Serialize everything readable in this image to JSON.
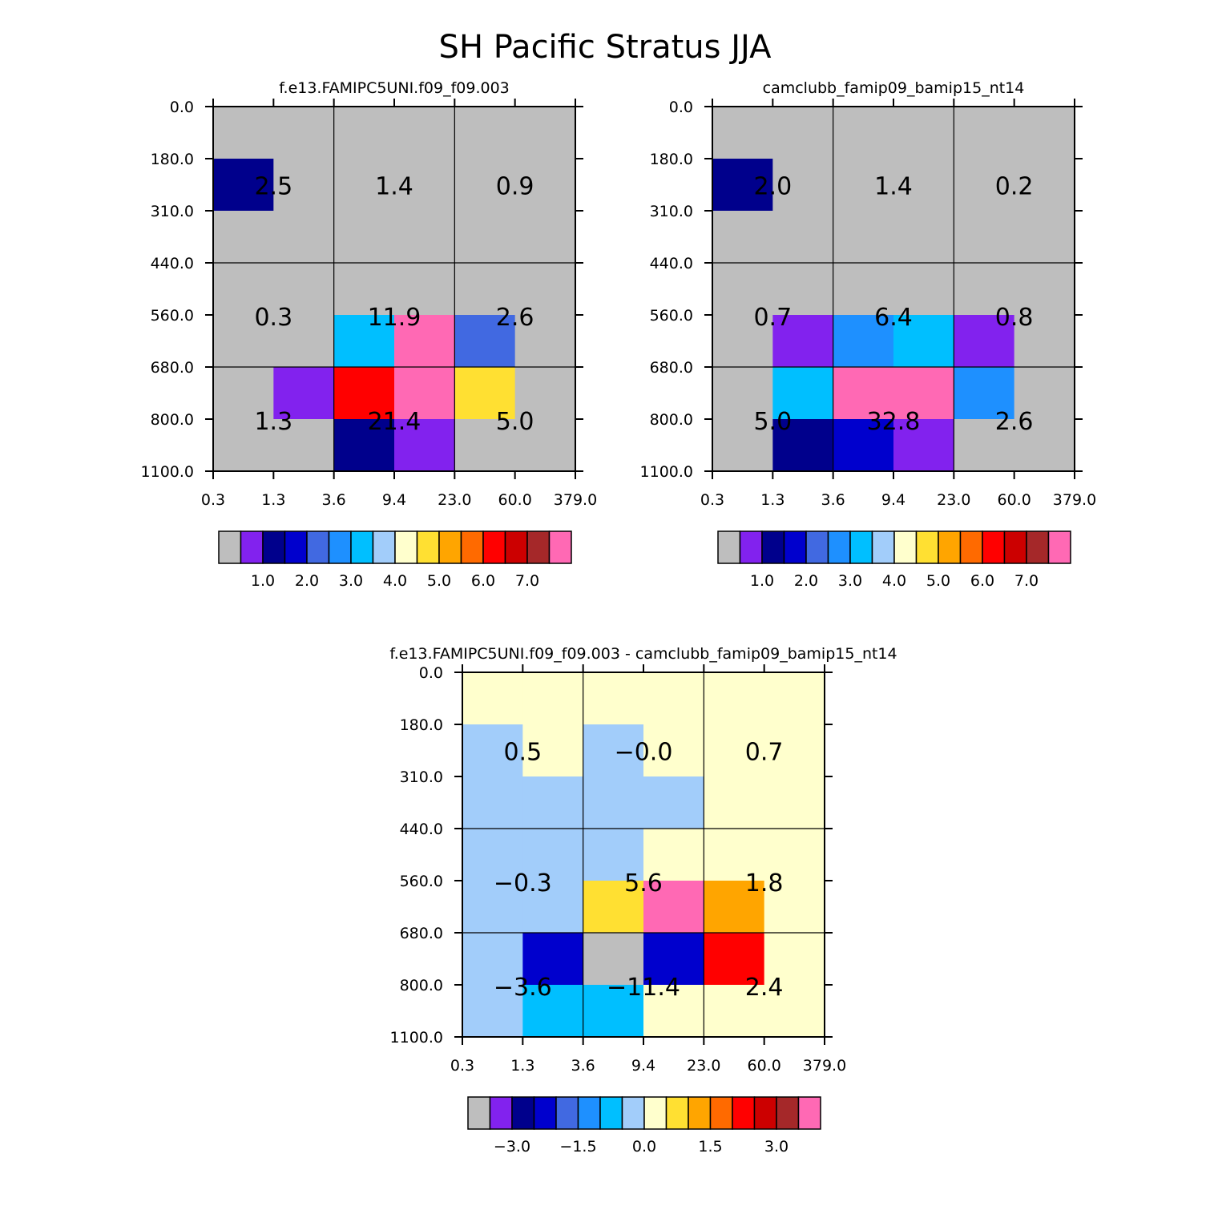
{
  "title": "SH Pacific Stratus JJA",
  "palette": [
    "#bebebe",
    "#8222ee",
    "#00008c",
    "#0000cd",
    "#4169e1",
    "#1e90ff",
    "#00bfff",
    "#a2cdfa",
    "#ffffcd",
    "#ffe032",
    "#ffa500",
    "#ff6a00",
    "#ff0000",
    "#cc0000",
    "#a52829",
    "#ff69b4"
  ],
  "chart_data": [
    {
      "type": "heatmap",
      "title": "f.e13.FAMIPC5UNI.f09_f09.003",
      "x_ticks": [
        "0.3",
        "1.3",
        "3.6",
        "9.4",
        "23.0",
        "60.0",
        "379.0"
      ],
      "y_ticks": [
        "0.0",
        "180.0",
        "310.0",
        "440.0",
        "560.0",
        "680.0",
        "800.0",
        "1100.0"
      ],
      "cells": [
        [
          0,
          0,
          0,
          0,
          0,
          0
        ],
        [
          2,
          0,
          0,
          0,
          0,
          0
        ],
        [
          0,
          0,
          0,
          0,
          0,
          0
        ],
        [
          0,
          0,
          0,
          0,
          0,
          0
        ],
        [
          0,
          0,
          6,
          15,
          4,
          0
        ],
        [
          0,
          1,
          12,
          15,
          9,
          0
        ],
        [
          0,
          0,
          2,
          1,
          0,
          0
        ]
      ],
      "block_values": [
        [
          "2.5",
          "1.4",
          "0.9"
        ],
        [
          "0.3",
          "11.9",
          "2.6"
        ],
        [
          "1.3",
          "21.4",
          "5.0"
        ]
      ],
      "colorbar_labels": [
        "1.0",
        "2.0",
        "3.0",
        "4.0",
        "5.0",
        "6.0",
        "7.0"
      ]
    },
    {
      "type": "heatmap",
      "title": "camclubb_famip09_bamip15_nt14",
      "x_ticks": [
        "0.3",
        "1.3",
        "3.6",
        "9.4",
        "23.0",
        "60.0",
        "379.0"
      ],
      "y_ticks": [
        "0.0",
        "180.0",
        "310.0",
        "440.0",
        "560.0",
        "680.0",
        "800.0",
        "1100.0"
      ],
      "cells": [
        [
          0,
          0,
          0,
          0,
          0,
          0
        ],
        [
          2,
          0,
          0,
          0,
          0,
          0
        ],
        [
          0,
          0,
          0,
          0,
          0,
          0
        ],
        [
          0,
          0,
          0,
          0,
          0,
          0
        ],
        [
          0,
          1,
          5,
          6,
          1,
          0
        ],
        [
          0,
          6,
          15,
          15,
          5,
          0
        ],
        [
          0,
          2,
          3,
          1,
          0,
          0
        ]
      ],
      "block_values": [
        [
          "2.0",
          "1.4",
          "0.2"
        ],
        [
          "0.7",
          "6.4",
          "0.8"
        ],
        [
          "5.0",
          "32.8",
          "2.6"
        ]
      ],
      "colorbar_labels": [
        "1.0",
        "2.0",
        "3.0",
        "4.0",
        "5.0",
        "6.0",
        "7.0"
      ]
    },
    {
      "type": "heatmap",
      "title": "f.e13.FAMIPC5UNI.f09_f09.003 - camclubb_famip09_bamip15_nt14",
      "x_ticks": [
        "0.3",
        "1.3",
        "3.6",
        "9.4",
        "23.0",
        "60.0",
        "379.0"
      ],
      "y_ticks": [
        "0.0",
        "180.0",
        "310.0",
        "440.0",
        "560.0",
        "680.0",
        "800.0",
        "1100.0"
      ],
      "cells": [
        [
          8,
          8,
          8,
          8,
          8,
          8
        ],
        [
          7,
          8,
          7,
          8,
          8,
          8
        ],
        [
          7,
          7,
          7,
          7,
          8,
          8
        ],
        [
          7,
          7,
          7,
          8,
          8,
          8
        ],
        [
          7,
          7,
          9,
          15,
          10,
          8
        ],
        [
          7,
          3,
          0,
          3,
          12,
          8
        ],
        [
          7,
          6,
          6,
          8,
          8,
          8
        ]
      ],
      "block_values": [
        [
          "0.5",
          "-0.0",
          "0.7"
        ],
        [
          "-0.3",
          "5.6",
          "1.8"
        ],
        [
          "-3.6",
          "-11.4",
          "2.4"
        ]
      ],
      "colorbar_labels": [
        "-3.0",
        "-1.5",
        "0.0",
        "1.5",
        "3.0"
      ]
    }
  ]
}
